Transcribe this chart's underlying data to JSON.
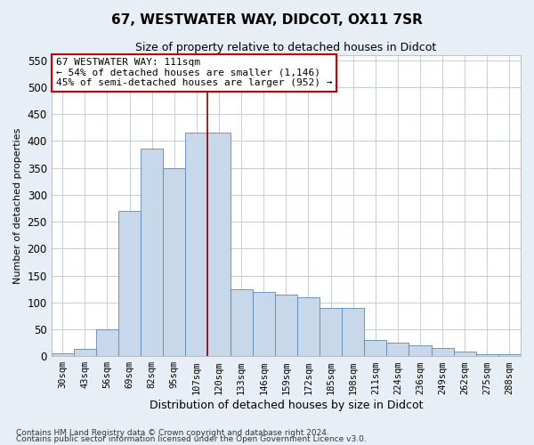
{
  "title": "67, WESTWATER WAY, DIDCOT, OX11 7SR",
  "subtitle": "Size of property relative to detached houses in Didcot",
  "xlabel": "Distribution of detached houses by size in Didcot",
  "ylabel": "Number of detached properties",
  "footnote1": "Contains HM Land Registry data © Crown copyright and database right 2024.",
  "footnote2": "Contains public sector information licensed under the Open Government Licence v3.0.",
  "annotation_title": "67 WESTWATER WAY: 111sqm",
  "annotation_line1": "← 54% of detached houses are smaller (1,146)",
  "annotation_line2": "45% of semi-detached houses are larger (952) →",
  "categories": [
    "30sqm",
    "43sqm",
    "56sqm",
    "69sqm",
    "82sqm",
    "95sqm",
    "107sqm",
    "120sqm",
    "133sqm",
    "146sqm",
    "159sqm",
    "172sqm",
    "185sqm",
    "198sqm",
    "211sqm",
    "224sqm",
    "236sqm",
    "249sqm",
    "262sqm",
    "275sqm",
    "288sqm"
  ],
  "values": [
    5,
    13,
    50,
    270,
    385,
    350,
    415,
    415,
    125,
    120,
    115,
    110,
    90,
    90,
    30,
    25,
    20,
    15,
    8,
    3,
    3
  ],
  "bar_color": "#c8d8eb",
  "bar_edge_color": "#5a8ab8",
  "vline_color": "#8b0000",
  "vline_x": 6.5,
  "annotation_box_facecolor": "#ffffff",
  "annotation_box_edgecolor": "#cc0000",
  "ylim": [
    0,
    560
  ],
  "yticks": [
    0,
    50,
    100,
    150,
    200,
    250,
    300,
    350,
    400,
    450,
    500,
    550
  ],
  "bg_color": "#e8eef5",
  "plot_bg_color": "#ffffff",
  "grid_color": "#c5cdd8",
  "title_fontsize": 11,
  "subtitle_fontsize": 9
}
